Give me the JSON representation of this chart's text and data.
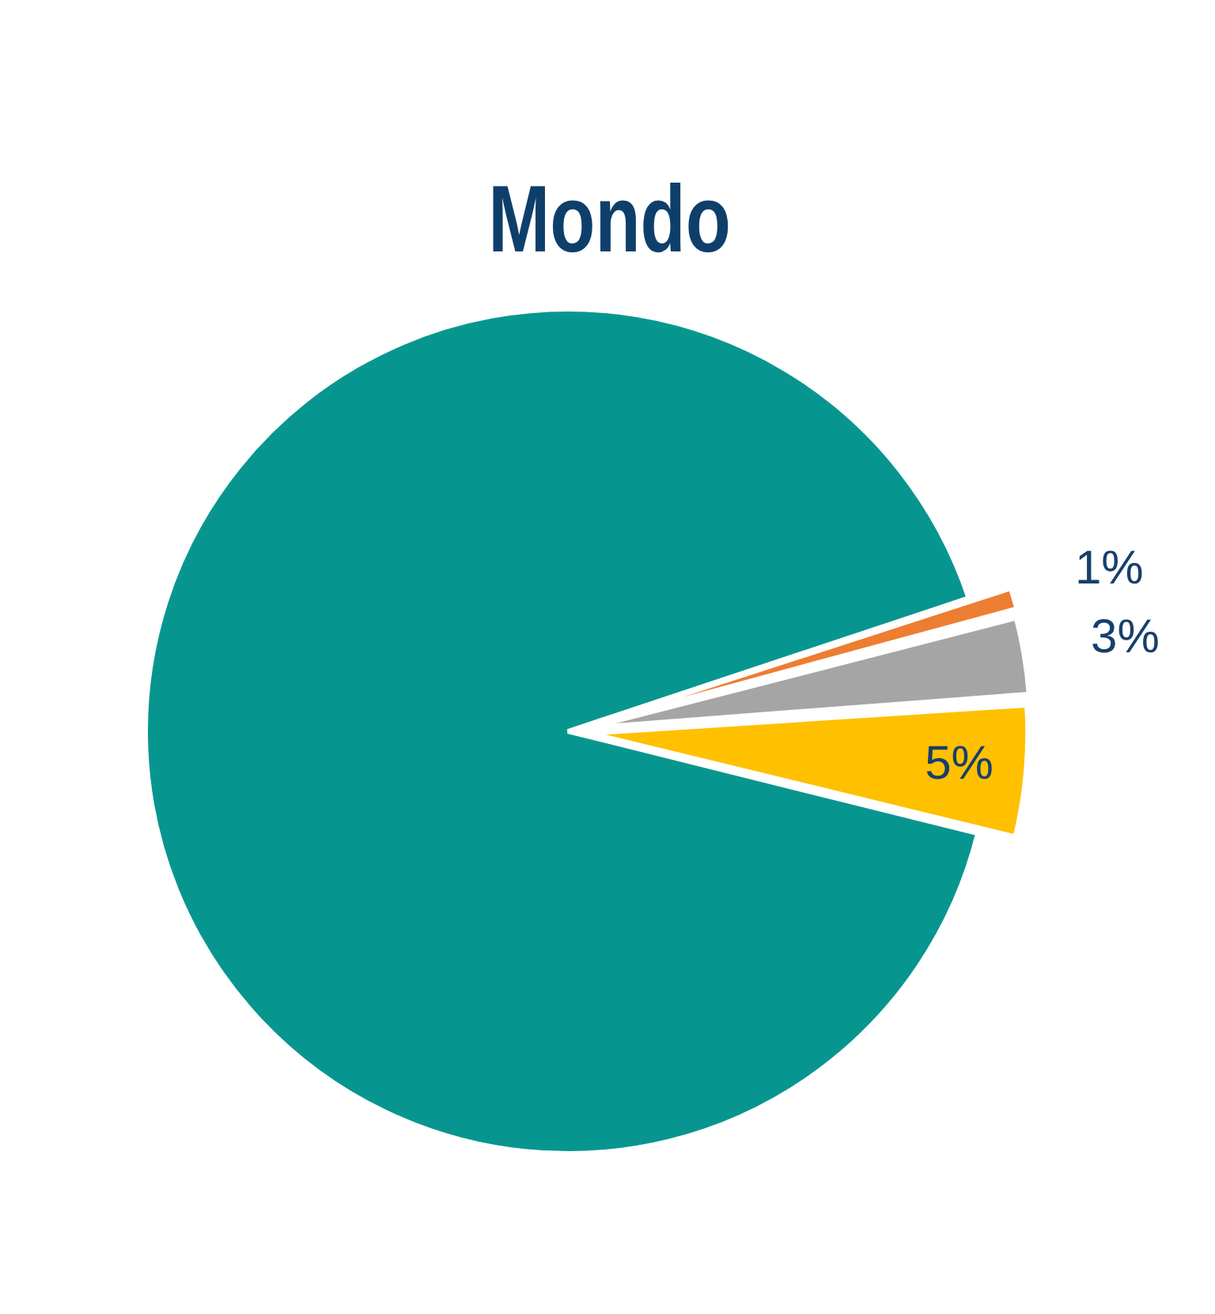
{
  "chart_data": {
    "type": "pie",
    "title": "Mondo",
    "categories": [
      null,
      null,
      null,
      null
    ],
    "values": [
      91,
      1,
      3,
      5
    ],
    "colors": [
      "#07968f",
      "#ed7d31",
      "#a5a5a5",
      "#ffc000"
    ],
    "value_labels": [
      null,
      "1%",
      "3%",
      "5%"
    ]
  }
}
